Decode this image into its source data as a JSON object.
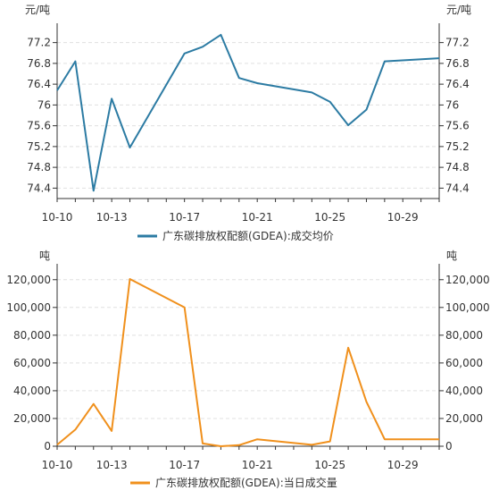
{
  "chart_data": [
    {
      "type": "line",
      "unit_left": "元/吨",
      "unit_right": "元/吨",
      "x_labels": [
        "10-10",
        "10-13",
        "10-17",
        "10-21",
        "10-25",
        "10-29"
      ],
      "series": [
        {
          "name": "广东碳排放权配额(GDEA):成交均价",
          "color": "#2c7ba3",
          "points": [
            {
              "x": "10-10",
              "y": 76.28
            },
            {
              "x": "10-11",
              "y": 76.84
            },
            {
              "x": "10-12",
              "y": 74.35
            },
            {
              "x": "10-13",
              "y": 76.12
            },
            {
              "x": "10-14",
              "y": 75.18
            },
            {
              "x": "10-17",
              "y": 76.99
            },
            {
              "x": "10-18",
              "y": 77.12
            },
            {
              "x": "10-19",
              "y": 77.35
            },
            {
              "x": "10-20",
              "y": 76.52
            },
            {
              "x": "10-21",
              "y": 76.42
            },
            {
              "x": "10-24",
              "y": 76.24
            },
            {
              "x": "10-25",
              "y": 76.06
            },
            {
              "x": "10-26",
              "y": 75.61
            },
            {
              "x": "10-27",
              "y": 75.91
            },
            {
              "x": "10-28",
              "y": 76.84
            },
            {
              "x": "10-31",
              "y": 76.9
            }
          ]
        }
      ],
      "y_ticks": [
        "74.4",
        "74.8",
        "75.2",
        "75.6",
        "76",
        "76.4",
        "76.8",
        "77.2"
      ],
      "ylim": [
        74.2,
        77.4
      ],
      "grid": true,
      "legend_position": "bottom"
    },
    {
      "type": "line",
      "unit_left": "吨",
      "unit_right": "吨",
      "x_labels": [
        "10-10",
        "10-13",
        "10-17",
        "10-21",
        "10-25",
        "10-29"
      ],
      "series": [
        {
          "name": "广东碳排放权配额(GDEA):当日成交量",
          "color": "#f0901c",
          "points": [
            {
              "x": "10-10",
              "y": 1000
            },
            {
              "x": "10-11",
              "y": 12000
            },
            {
              "x": "10-12",
              "y": 30500
            },
            {
              "x": "10-13",
              "y": 11000
            },
            {
              "x": "10-14",
              "y": 120500
            },
            {
              "x": "10-17",
              "y": 100000
            },
            {
              "x": "10-18",
              "y": 2000
            },
            {
              "x": "10-19",
              "y": 0
            },
            {
              "x": "10-20",
              "y": 800
            },
            {
              "x": "10-21",
              "y": 5000
            },
            {
              "x": "10-24",
              "y": 1000
            },
            {
              "x": "10-25",
              "y": 3500
            },
            {
              "x": "10-26",
              "y": 71000
            },
            {
              "x": "10-27",
              "y": 32000
            },
            {
              "x": "10-28",
              "y": 5000
            },
            {
              "x": "10-31",
              "y": 5000
            }
          ]
        }
      ],
      "y_ticks": [
        "0",
        "20,000",
        "40,000",
        "60,000",
        "80,000",
        "100,000",
        "120,000"
      ],
      "ylim": [
        0,
        125000
      ],
      "grid": true,
      "legend_position": "bottom"
    }
  ]
}
